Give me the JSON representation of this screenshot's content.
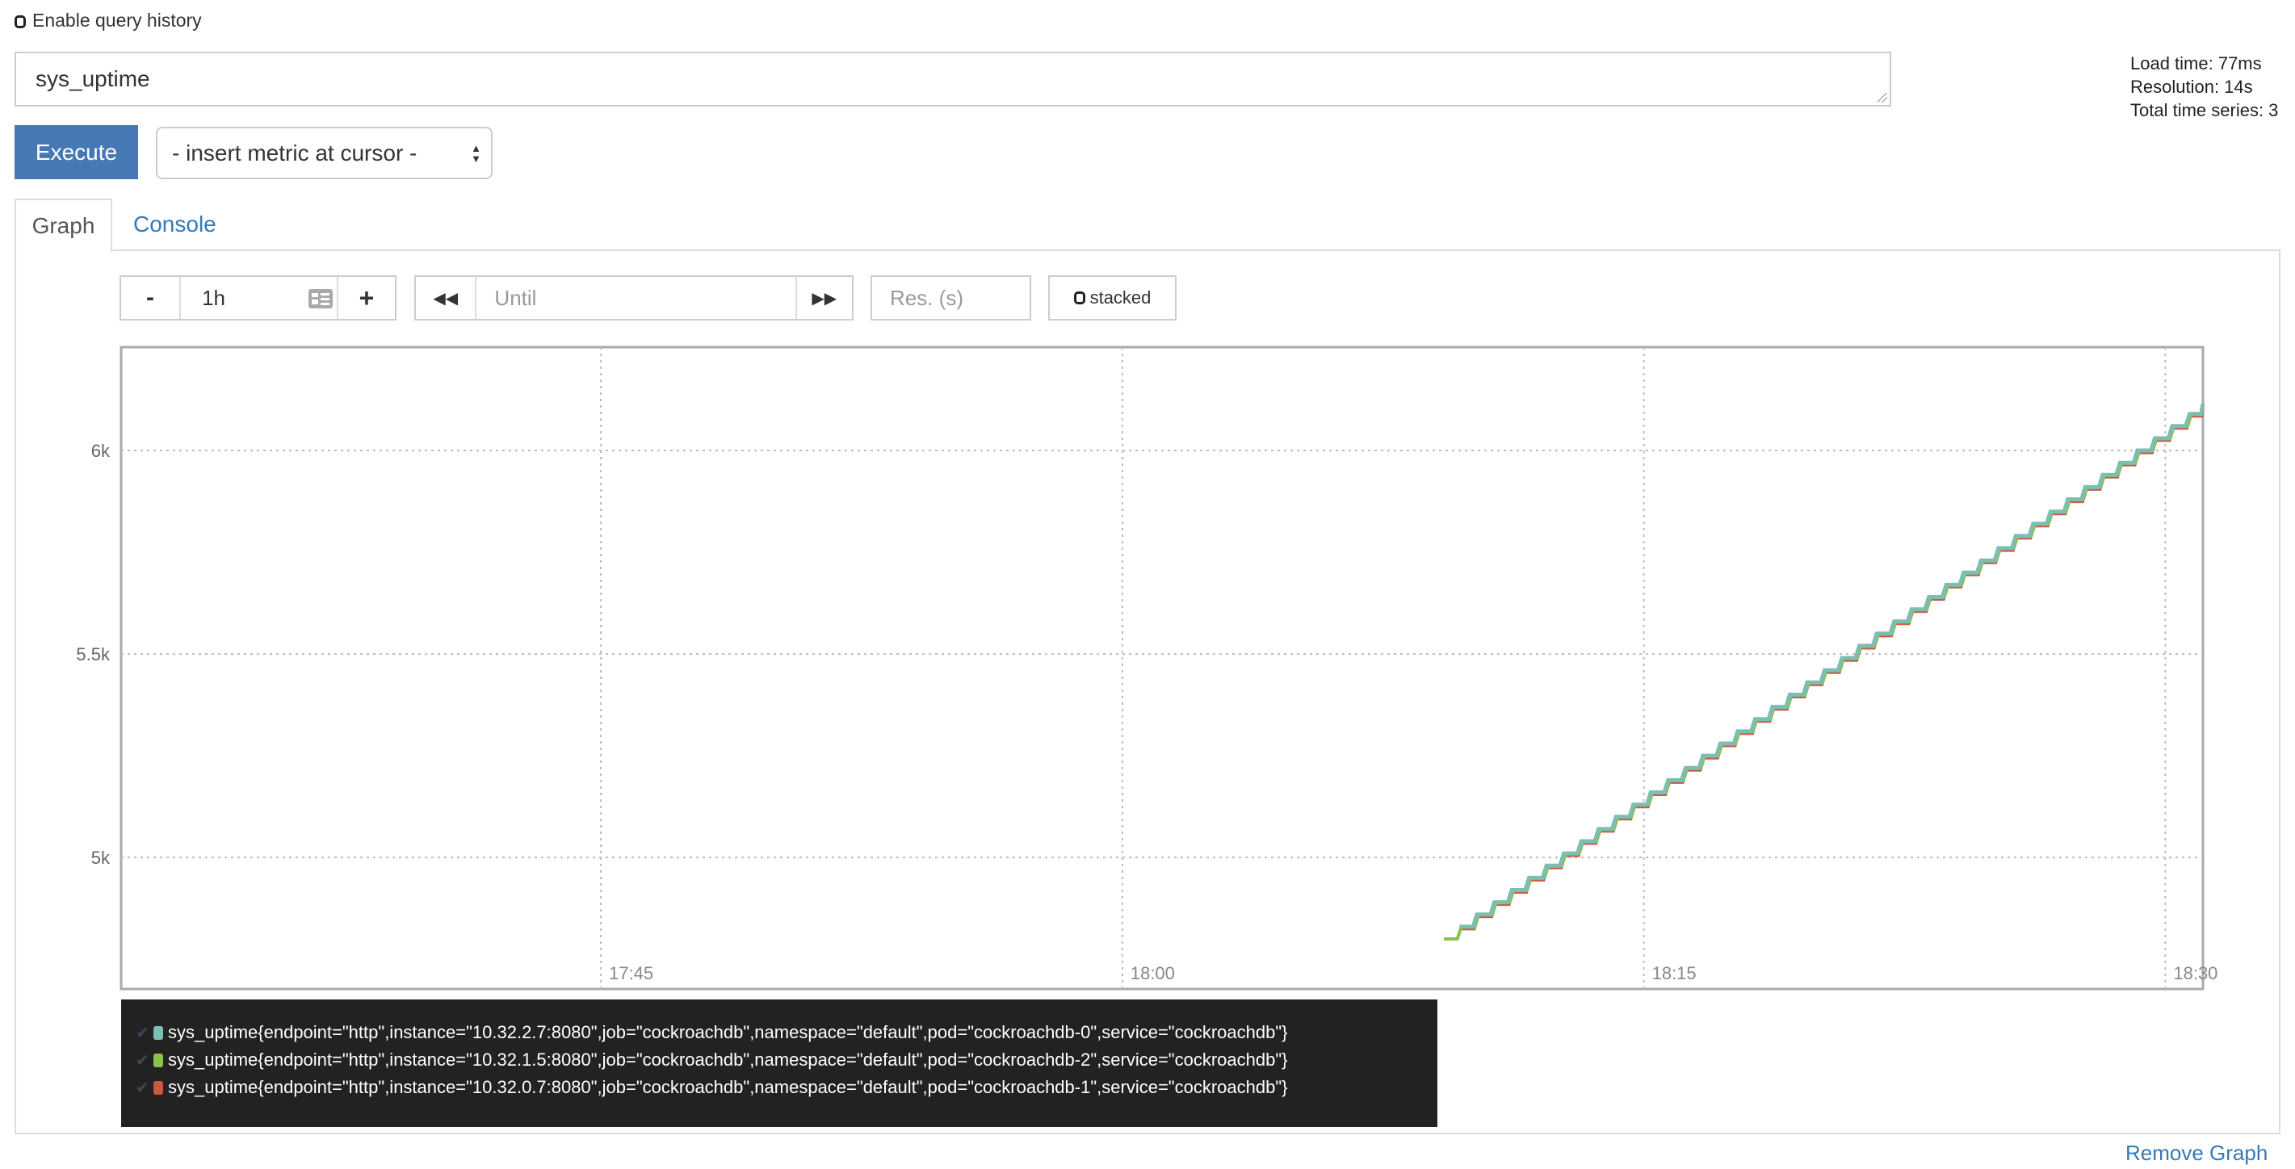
{
  "query_history": {
    "label": "Enable query history",
    "checked": false
  },
  "expression": {
    "value": "sys_uptime"
  },
  "stats": {
    "load_time": "Load time: 77ms",
    "resolution": "Resolution: 14s",
    "total_series": "Total time series: 3"
  },
  "execute_label": "Execute",
  "metric_select": {
    "selected": "- insert metric at cursor -"
  },
  "tabs": [
    {
      "label": "Graph",
      "active": true
    },
    {
      "label": "Console",
      "active": false
    }
  ],
  "controls": {
    "range_minus": "-",
    "range_value": "1h",
    "range_plus": "+",
    "until_placeholder": "Until",
    "back_icon": "double-chevron-left",
    "forward_icon": "double-chevron-right",
    "resolution_placeholder": "Res. (s)",
    "stacked_label": "stacked",
    "stacked_checked": false
  },
  "chart_data": {
    "type": "line",
    "xlim": [
      "17:31:12",
      "18:31:05"
    ],
    "ylim": [
      4677,
      6254
    ],
    "x_ticks": [
      "17:45",
      "18:00",
      "18:15",
      "18:30"
    ],
    "y_ticks": [
      {
        "value": 5000,
        "label": "5k"
      },
      {
        "value": 5500,
        "label": "5.5k"
      },
      {
        "value": 6000,
        "label": "6k"
      }
    ],
    "grid": true,
    "series": [
      {
        "name": "sys_uptime{endpoint=\"http\",instance=\"10.32.2.7:8080\",job=\"cockroachdb\",namespace=\"default\",pod=\"cockroachdb-0\",service=\"cockroachdb\"}",
        "color": "#7bbfb3",
        "points": [
          [
            "18:09:42",
            4830
          ],
          [
            "18:10:12",
            4860
          ],
          [
            "18:10:42",
            4890
          ],
          [
            "18:11:12",
            4920
          ],
          [
            "18:11:42",
            4950
          ],
          [
            "18:12:12",
            4980
          ],
          [
            "18:12:42",
            5010
          ],
          [
            "18:13:12",
            5040
          ],
          [
            "18:13:42",
            5070
          ],
          [
            "18:14:12",
            5100
          ],
          [
            "18:14:42",
            5130
          ],
          [
            "18:15:12",
            5160
          ],
          [
            "18:15:42",
            5190
          ],
          [
            "18:16:12",
            5220
          ],
          [
            "18:16:42",
            5250
          ],
          [
            "18:17:12",
            5280
          ],
          [
            "18:17:42",
            5310
          ],
          [
            "18:18:12",
            5340
          ],
          [
            "18:18:42",
            5370
          ],
          [
            "18:19:12",
            5400
          ],
          [
            "18:19:42",
            5430
          ],
          [
            "18:20:12",
            5460
          ],
          [
            "18:20:42",
            5490
          ],
          [
            "18:21:12",
            5520
          ],
          [
            "18:21:42",
            5550
          ],
          [
            "18:22:12",
            5580
          ],
          [
            "18:22:42",
            5610
          ],
          [
            "18:23:12",
            5640
          ],
          [
            "18:23:42",
            5670
          ],
          [
            "18:24:12",
            5700
          ],
          [
            "18:24:42",
            5730
          ],
          [
            "18:25:12",
            5760
          ],
          [
            "18:25:42",
            5790
          ],
          [
            "18:26:12",
            5820
          ],
          [
            "18:26:42",
            5850
          ],
          [
            "18:27:12",
            5880
          ],
          [
            "18:27:42",
            5910
          ],
          [
            "18:28:12",
            5940
          ],
          [
            "18:28:42",
            5970
          ],
          [
            "18:29:12",
            6000
          ],
          [
            "18:29:42",
            6030
          ],
          [
            "18:30:12",
            6060
          ],
          [
            "18:30:42",
            6090
          ],
          [
            "18:31:05",
            6115
          ]
        ]
      },
      {
        "name": "sys_uptime{endpoint=\"http\",instance=\"10.32.1.5:8080\",job=\"cockroachdb\",namespace=\"default\",pod=\"cockroachdb-2\",service=\"cockroachdb\"}",
        "color": "#8bc34a",
        "points": [
          [
            "18:09:15",
            4800
          ],
          [
            "18:09:45",
            4830
          ],
          [
            "18:10:15",
            4860
          ],
          [
            "18:10:45",
            4890
          ],
          [
            "18:11:15",
            4920
          ],
          [
            "18:11:45",
            4950
          ],
          [
            "18:12:15",
            4980
          ],
          [
            "18:12:45",
            5010
          ],
          [
            "18:13:15",
            5040
          ],
          [
            "18:13:45",
            5070
          ],
          [
            "18:14:15",
            5100
          ],
          [
            "18:14:45",
            5130
          ],
          [
            "18:15:15",
            5160
          ],
          [
            "18:15:45",
            5190
          ],
          [
            "18:16:15",
            5220
          ],
          [
            "18:16:45",
            5250
          ],
          [
            "18:17:15",
            5280
          ],
          [
            "18:17:45",
            5310
          ],
          [
            "18:18:15",
            5340
          ],
          [
            "18:18:45",
            5370
          ],
          [
            "18:19:15",
            5400
          ],
          [
            "18:19:45",
            5430
          ],
          [
            "18:20:15",
            5460
          ],
          [
            "18:20:45",
            5490
          ],
          [
            "18:21:15",
            5520
          ],
          [
            "18:21:45",
            5550
          ],
          [
            "18:22:15",
            5580
          ],
          [
            "18:22:45",
            5610
          ],
          [
            "18:23:15",
            5640
          ],
          [
            "18:23:45",
            5670
          ],
          [
            "18:24:15",
            5700
          ],
          [
            "18:24:45",
            5730
          ],
          [
            "18:25:15",
            5760
          ],
          [
            "18:25:45",
            5790
          ],
          [
            "18:26:15",
            5820
          ],
          [
            "18:26:45",
            5850
          ],
          [
            "18:27:15",
            5880
          ],
          [
            "18:27:45",
            5910
          ],
          [
            "18:28:15",
            5940
          ],
          [
            "18:28:45",
            5970
          ],
          [
            "18:29:15",
            6000
          ],
          [
            "18:29:45",
            6030
          ],
          [
            "18:30:15",
            6060
          ],
          [
            "18:30:45",
            6090
          ]
        ]
      },
      {
        "name": "sys_uptime{endpoint=\"http\",instance=\"10.32.0.7:8080\",job=\"cockroachdb\",namespace=\"default\",pod=\"cockroachdb-1\",service=\"cockroachdb\"}",
        "color": "#cc5a3e",
        "points": [
          [
            "18:09:44",
            4825
          ],
          [
            "18:10:14",
            4855
          ],
          [
            "18:10:44",
            4885
          ],
          [
            "18:11:14",
            4915
          ],
          [
            "18:11:44",
            4945
          ],
          [
            "18:12:14",
            4975
          ],
          [
            "18:12:44",
            5005
          ],
          [
            "18:13:14",
            5035
          ],
          [
            "18:13:44",
            5065
          ],
          [
            "18:14:14",
            5095
          ],
          [
            "18:14:44",
            5125
          ],
          [
            "18:15:14",
            5155
          ],
          [
            "18:15:44",
            5185
          ],
          [
            "18:16:14",
            5215
          ],
          [
            "18:16:44",
            5245
          ],
          [
            "18:17:14",
            5275
          ],
          [
            "18:17:44",
            5305
          ],
          [
            "18:18:14",
            5335
          ],
          [
            "18:18:44",
            5365
          ],
          [
            "18:19:14",
            5395
          ],
          [
            "18:19:44",
            5425
          ],
          [
            "18:20:14",
            5455
          ],
          [
            "18:20:44",
            5485
          ],
          [
            "18:21:14",
            5515
          ],
          [
            "18:21:44",
            5545
          ],
          [
            "18:22:14",
            5575
          ],
          [
            "18:22:44",
            5605
          ],
          [
            "18:23:14",
            5635
          ],
          [
            "18:23:44",
            5665
          ],
          [
            "18:24:14",
            5695
          ],
          [
            "18:24:44",
            5725
          ],
          [
            "18:25:14",
            5755
          ],
          [
            "18:25:44",
            5785
          ],
          [
            "18:26:14",
            5815
          ],
          [
            "18:26:44",
            5845
          ],
          [
            "18:27:14",
            5875
          ],
          [
            "18:27:44",
            5905
          ],
          [
            "18:28:14",
            5935
          ],
          [
            "18:28:44",
            5965
          ],
          [
            "18:29:14",
            5995
          ],
          [
            "18:29:44",
            6025
          ],
          [
            "18:30:14",
            6055
          ],
          [
            "18:30:44",
            6085
          ],
          [
            "18:31:05",
            6105
          ]
        ]
      }
    ]
  },
  "legend": {
    "check_icon": "checkmark"
  },
  "remove_graph_label": "Remove Graph"
}
